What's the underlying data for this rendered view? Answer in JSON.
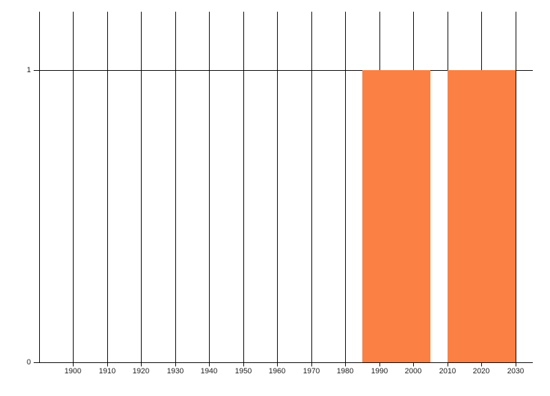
{
  "chart_data": {
    "type": "bar",
    "subtype": "interval-timeline",
    "title": "",
    "xlabel": "",
    "ylabel": "",
    "x_ticks": [
      1900,
      1910,
      1920,
      1930,
      1940,
      1950,
      1960,
      1970,
      1980,
      1990,
      2000,
      2010,
      2020,
      2030
    ],
    "x_gridline_years": [
      1890,
      1900,
      1910,
      1920,
      1930,
      1940,
      1950,
      1960,
      1970,
      1980,
      1990,
      2000,
      2010,
      2020,
      2030
    ],
    "y_ticks": [
      {
        "value": 0,
        "label": "0"
      },
      {
        "value": 1,
        "label": "1"
      }
    ],
    "xlim": [
      1888.4,
      2035.1
    ],
    "ylim": [
      0,
      1.2
    ],
    "bars": [
      {
        "x_start": 1985,
        "x_end": 2005,
        "value": 1
      },
      {
        "x_start": 2010,
        "x_end": 2030,
        "value": 1
      }
    ],
    "bar_color": "#fb8043",
    "axis_color": "#000000",
    "grid_color": "#000000",
    "text_color": "#1b1b1b",
    "grid": "vertical-only",
    "legend_position": "none"
  }
}
